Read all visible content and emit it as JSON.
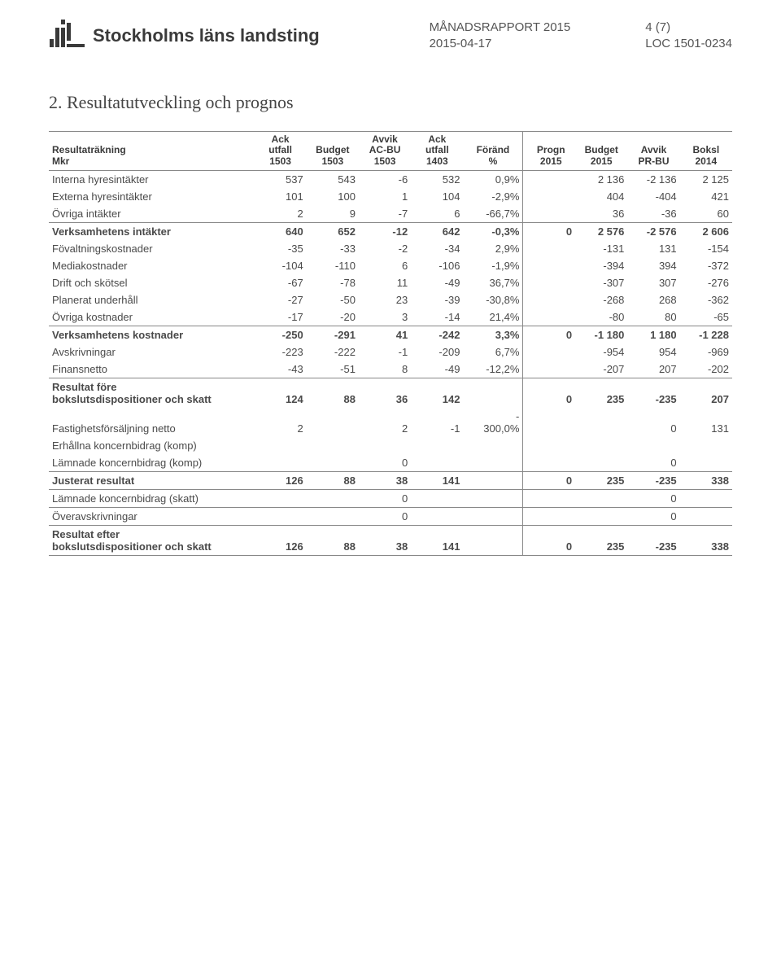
{
  "header": {
    "org": "Stockholms läns landsting",
    "report_title": "MÅNADSRAPPORT 2015",
    "report_date": "2015-04-17",
    "page": "4 (7)",
    "doc_ref": "LOC 1501-0234"
  },
  "section_title": "2. Resultatutveckling och prognos",
  "table": {
    "head_left_line1": "Resultaträkning",
    "head_left_line2": "Mkr",
    "cols": [
      {
        "l1": "Ack",
        "l2": "utfall",
        "l3": "1503"
      },
      {
        "l1": "Budget",
        "l2": "1503",
        "l3": ""
      },
      {
        "l1": "Avvik",
        "l2": "AC-BU",
        "l3": "1503"
      },
      {
        "l1": "Ack",
        "l2": "utfall",
        "l3": "1403"
      },
      {
        "l1": "Föränd",
        "l2": "%",
        "l3": ""
      },
      {
        "l1": "Progn",
        "l2": "2015",
        "l3": ""
      },
      {
        "l1": "Budget",
        "l2": "2015",
        "l3": ""
      },
      {
        "l1": "Avvik",
        "l2": "PR-BU",
        "l3": ""
      },
      {
        "l1": "Boksl",
        "l2": "2014",
        "l3": ""
      }
    ],
    "rows": [
      {
        "label": "Interna hyresintäkter",
        "v": [
          "537",
          "543",
          "-6",
          "532",
          "0,9%",
          "",
          "2 136",
          "-2 136",
          "2 125"
        ],
        "bold": false,
        "underline": false,
        "gap": true
      },
      {
        "label": "Externa hyresintäkter",
        "v": [
          "101",
          "100",
          "1",
          "104",
          "-2,9%",
          "",
          "404",
          "-404",
          "421"
        ],
        "bold": false,
        "underline": false,
        "gap": false
      },
      {
        "label": "Övriga intäkter",
        "v": [
          "2",
          "9",
          "-7",
          "6",
          "-66,7%",
          "",
          "36",
          "-36",
          "60"
        ],
        "bold": false,
        "underline": true,
        "gap": false
      },
      {
        "label": "Verksamhetens intäkter",
        "v": [
          "640",
          "652",
          "-12",
          "642",
          "-0,3%",
          "0",
          "2 576",
          "-2 576",
          "2 606"
        ],
        "bold": true,
        "underline": false,
        "gap": false
      },
      {
        "label": "Fövaltningskostnader",
        "v": [
          "-35",
          "-33",
          "-2",
          "-34",
          "2,9%",
          "",
          "-131",
          "131",
          "-154"
        ],
        "bold": false,
        "underline": false,
        "gap": false
      },
      {
        "label": "Mediakostnader",
        "v": [
          "-104",
          "-110",
          "6",
          "-106",
          "-1,9%",
          "",
          "-394",
          "394",
          "-372"
        ],
        "bold": false,
        "underline": false,
        "gap": false
      },
      {
        "label": "Drift och skötsel",
        "v": [
          "-67",
          "-78",
          "11",
          "-49",
          "36,7%",
          "",
          "-307",
          "307",
          "-276"
        ],
        "bold": false,
        "underline": false,
        "gap": false
      },
      {
        "label": "Planerat underhåll",
        "v": [
          "-27",
          "-50",
          "23",
          "-39",
          "-30,8%",
          "",
          "-268",
          "268",
          "-362"
        ],
        "bold": false,
        "underline": false,
        "gap": false
      },
      {
        "label": "Övriga kostnader",
        "v": [
          "-17",
          "-20",
          "3",
          "-14",
          "21,4%",
          "",
          "-80",
          "80",
          "-65"
        ],
        "bold": false,
        "underline": true,
        "gap": false
      },
      {
        "label": "Verksamhetens kostnader",
        "v": [
          "-250",
          "-291",
          "41",
          "-242",
          "3,3%",
          "0",
          "-1 180",
          "1 180",
          "-1 228"
        ],
        "bold": true,
        "underline": false,
        "gap": false
      },
      {
        "label": "Avskrivningar",
        "v": [
          "-223",
          "-222",
          "-1",
          "-209",
          "6,7%",
          "",
          "-954",
          "954",
          "-969"
        ],
        "bold": false,
        "underline": false,
        "gap": false
      },
      {
        "label": "Finansnetto",
        "v": [
          "-43",
          "-51",
          "8",
          "-49",
          "-12,2%",
          "",
          "-207",
          "207",
          "-202"
        ],
        "bold": false,
        "underline": true,
        "gap": false
      },
      {
        "label": "Resultat före\nbokslutsdispositioner och skatt",
        "v": [
          "124",
          "88",
          "36",
          "142",
          "",
          "0",
          "235",
          "-235",
          "207"
        ],
        "bold": true,
        "underline": false,
        "gap": true
      },
      {
        "label": "Fastighetsförsäljning netto",
        "v": [
          "2",
          "",
          "2",
          "-1",
          "-\n300,0%",
          "",
          "",
          "0",
          "131"
        ],
        "bold": false,
        "underline": false,
        "gap": true
      },
      {
        "label": "Erhållna koncernbidrag (komp)",
        "v": [
          "",
          "",
          "",
          "",
          "",
          "",
          "",
          "",
          ""
        ],
        "bold": false,
        "underline": false,
        "gap": false
      },
      {
        "label": "Lämnade koncernbidrag (komp)",
        "v": [
          "",
          "",
          "0",
          "",
          "",
          "",
          "",
          "0",
          ""
        ],
        "bold": false,
        "underline": true,
        "gap": false
      },
      {
        "label": "Justerat resultat",
        "v": [
          "126",
          "88",
          "38",
          "141",
          "",
          "0",
          "235",
          "-235",
          "338"
        ],
        "bold": true,
        "underline": true,
        "gap": false
      },
      {
        "label": "Lämnade koncernbidrag (skatt)",
        "v": [
          "",
          "",
          "0",
          "",
          "",
          "",
          "",
          "0",
          ""
        ],
        "bold": false,
        "underline": true,
        "gap": false
      },
      {
        "label": "Överavskrivningar",
        "v": [
          "",
          "",
          "0",
          "",
          "",
          "",
          "",
          "0",
          ""
        ],
        "bold": false,
        "underline": true,
        "gap": false
      },
      {
        "label": "Resultat efter\nbokslutsdispositioner och skatt",
        "v": [
          "126",
          "88",
          "38",
          "141",
          "",
          "0",
          "235",
          "-235",
          "338"
        ],
        "bold": true,
        "underline": true,
        "gap": true
      }
    ]
  }
}
